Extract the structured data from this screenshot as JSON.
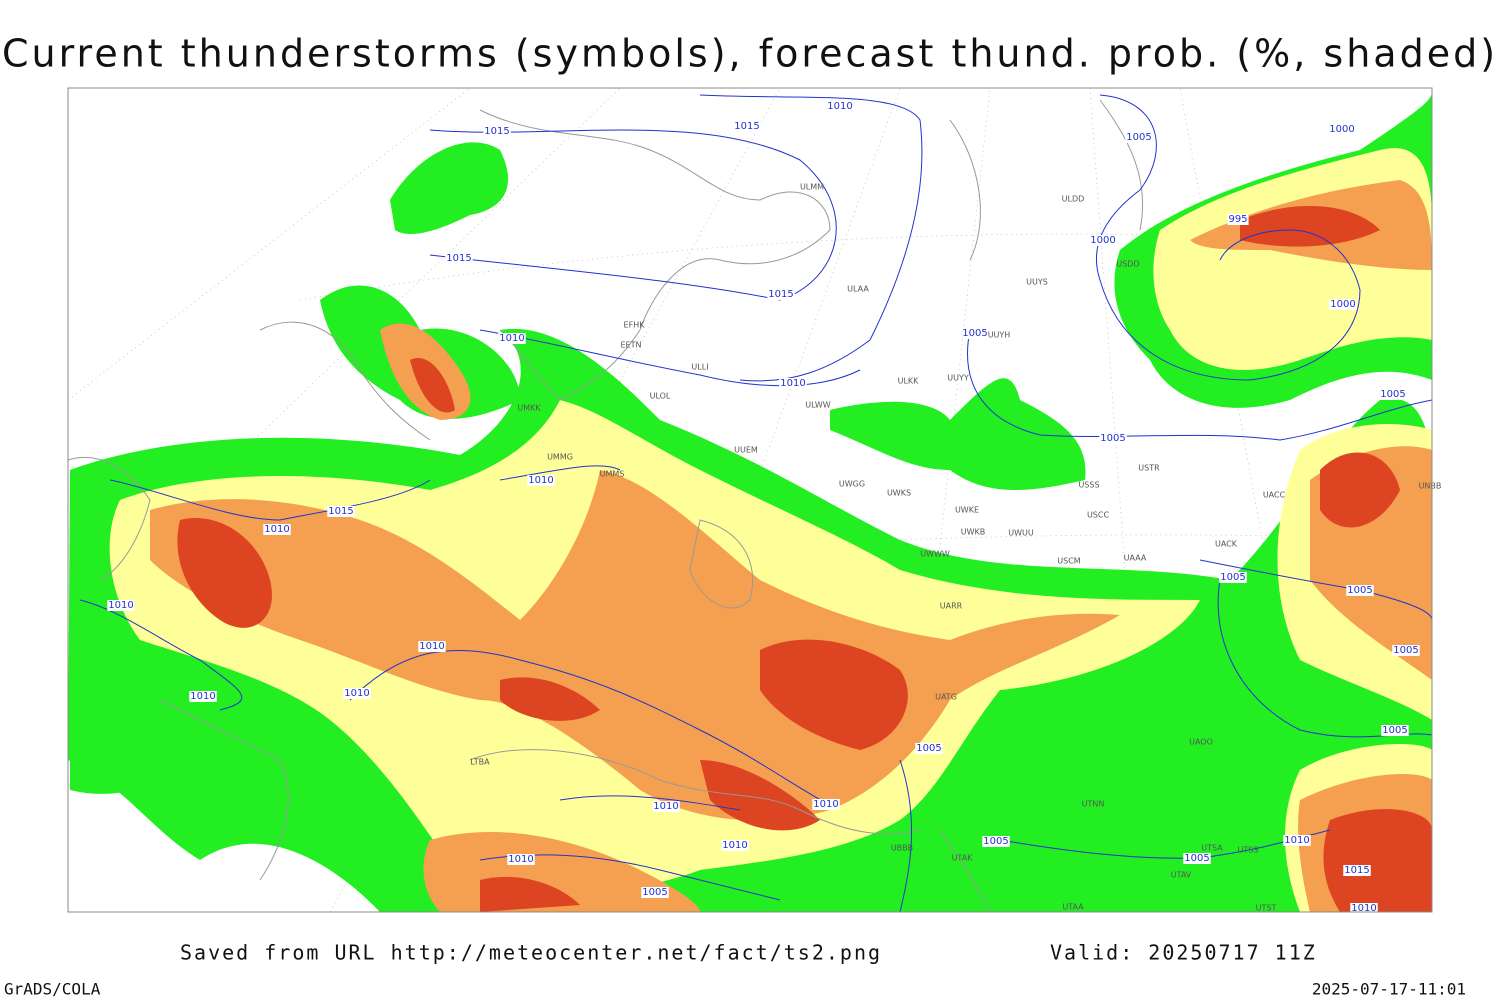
{
  "header": {
    "title": "Current thunderstorms (symbols), forecast thund. prob. (%, shaded)"
  },
  "footer": {
    "source": "Saved from URL http://meteocenter.net/fact/ts2.png",
    "valid": "Valid: 20250717 11Z",
    "software": "GrADS/COLA",
    "timestamp": "2025-07-17-11:01"
  },
  "map": {
    "isobar_labels": [
      1015,
      1015,
      1010,
      1005,
      1000,
      995,
      1000,
      1015,
      1015,
      1005,
      1000,
      1010,
      1010,
      1005,
      1005,
      1010,
      1015,
      1010,
      1010,
      1005,
      1005,
      1010,
      1005,
      1010,
      1010,
      1005,
      1005,
      1010,
      1010,
      1005,
      1010,
      1010,
      1005,
      1010,
      1015,
      1005,
      1010
    ],
    "station_labels": [
      "ULMM",
      "ULDD",
      "USDD",
      "ULAA",
      "UUYS",
      "UUYH",
      "EFHK",
      "EETN",
      "ULLI",
      "ULOL",
      "ULKK",
      "UUYY",
      "ULWW",
      "UMKK",
      "UUEM",
      "UMMG",
      "USTR",
      "UWGG",
      "UWKS",
      "USSS",
      "UNBB",
      "USCC",
      "UACC",
      "UWKE",
      "UWKB",
      "UWUU",
      "UACK",
      "UWWW",
      "USCM",
      "UAAA",
      "UARR",
      "UATG",
      "UAOO",
      "UTNN",
      "UTAK",
      "UTSA",
      "UTSS",
      "UTAV",
      "UTST",
      "UTAA",
      "UBBB",
      "LTBA",
      "UMMS"
    ]
  }
}
